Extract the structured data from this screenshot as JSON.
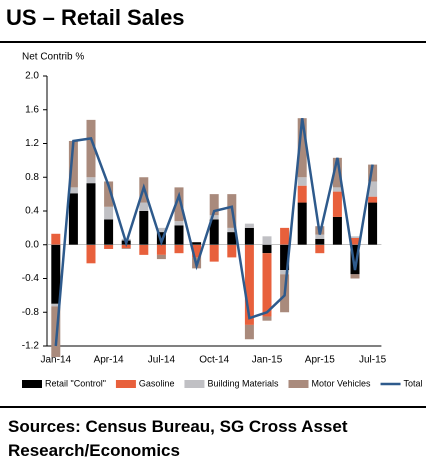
{
  "chart_data": {
    "type": "bar",
    "title": "US – Retail Sales",
    "y_label": "Net Contrib %",
    "source": "Sources: Census Bureau, SG Cross Asset Research/Economics",
    "stacked": true,
    "categories": [
      "Jan-14",
      null,
      null,
      "Apr-14",
      null,
      null,
      "Jul-14",
      null,
      null,
      "Oct-14",
      null,
      null,
      "Jan-15",
      null,
      null,
      "Apr-15",
      null,
      null,
      "Jul-15"
    ],
    "series": [
      {
        "name": "Retail \"Control\"",
        "color": "#000000",
        "values": [
          -0.7,
          0.61,
          0.73,
          0.3,
          0.05,
          0.4,
          0.15,
          0.23,
          0.03,
          0.3,
          0.15,
          0.2,
          -0.1,
          -0.3,
          0.5,
          0.07,
          0.33,
          -0.35,
          0.5
        ]
      },
      {
        "name": "Gasoline",
        "color": "#e8603c",
        "values": [
          0.13,
          0.0,
          -0.22,
          -0.05,
          -0.04,
          -0.12,
          -0.12,
          -0.1,
          -0.15,
          -0.2,
          -0.15,
          -0.95,
          -0.75,
          0.2,
          0.2,
          -0.1,
          0.3,
          0.08,
          0.07
        ]
      },
      {
        "name": "Building Materials",
        "color": "#c0c0c4",
        "values": [
          -0.03,
          0.07,
          0.07,
          0.15,
          0.02,
          0.1,
          0.05,
          0.05,
          0.0,
          0.05,
          0.05,
          0.05,
          0.1,
          -0.05,
          0.1,
          0.05,
          0.05,
          0.02,
          0.18
        ]
      },
      {
        "name": "Motor Vehicles",
        "color": "#a98a7c",
        "values": [
          -0.6,
          0.55,
          0.68,
          0.3,
          -0.01,
          0.3,
          -0.05,
          0.4,
          -0.13,
          0.25,
          0.4,
          -0.17,
          -0.05,
          -0.45,
          0.7,
          0.1,
          0.35,
          -0.05,
          0.2
        ]
      },
      {
        "name": "Total",
        "color": "#2e5a8c",
        "line": true,
        "values": [
          -1.2,
          1.23,
          1.26,
          0.7,
          0.02,
          0.68,
          0.03,
          0.58,
          -0.25,
          0.4,
          0.45,
          -0.87,
          -0.8,
          -0.6,
          1.5,
          0.12,
          1.03,
          -0.3,
          0.95
        ]
      }
    ],
    "ylim": [
      -1.2,
      2.0
    ],
    "yticks": [
      {
        "value": -1.2,
        "label": "-1.2"
      },
      -0.8,
      -0.4,
      {
        "value": 0,
        "label": "0.0"
      },
      0.4,
      0.8,
      1.2,
      1.6,
      {
        "value": 2,
        "label": "2.0"
      }
    ]
  }
}
